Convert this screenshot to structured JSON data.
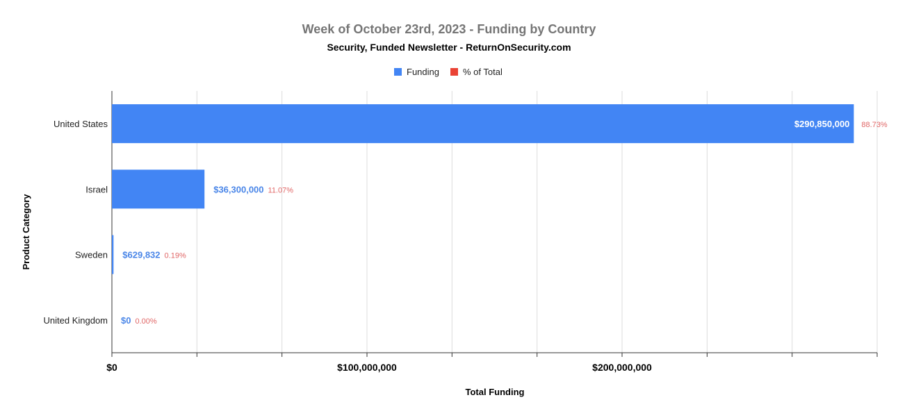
{
  "chart_data": {
    "type": "bar",
    "orientation": "horizontal",
    "title": "Week of October 23rd, 2023 - Funding by Country",
    "subtitle": "Security, Funded Newsletter - ReturnOnSecurity.com",
    "xlabel": "Total Funding",
    "ylabel": "Product Category",
    "categories": [
      "United States",
      "Israel",
      "Sweden",
      "United Kingdom"
    ],
    "series": [
      {
        "name": "Funding",
        "color": "#4285f4",
        "values": [
          290850000,
          36300000,
          629832,
          0
        ],
        "labels": [
          "$290,850,000",
          "$36,300,000",
          "$629,832",
          "$0"
        ]
      },
      {
        "name": "% of Total",
        "color": "#ea4335",
        "values": [
          88.73,
          11.07,
          0.19,
          0.0
        ],
        "labels": [
          "88.73%",
          "11.07%",
          "0.19%",
          "0.00%"
        ]
      }
    ],
    "xlim": [
      0,
      300000000
    ],
    "x_ticks": [
      0,
      100000000,
      200000000
    ],
    "x_tick_labels": [
      "$0",
      "$100,000,000",
      "$200,000,000"
    ],
    "grid": true,
    "legend_position": "top-center"
  }
}
